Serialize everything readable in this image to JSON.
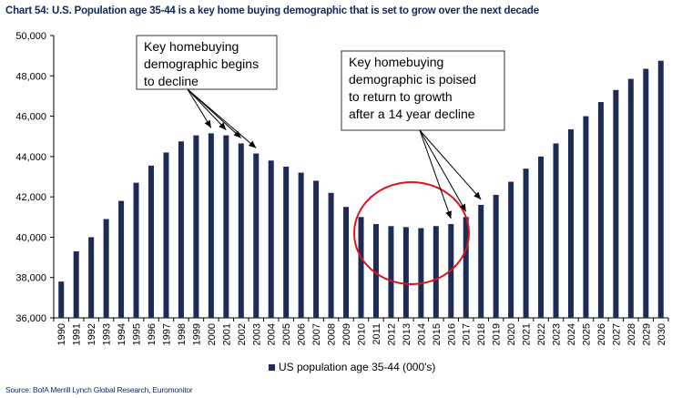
{
  "chart_data": {
    "type": "bar",
    "title": "Chart 54: U.S. Population age 35-44 is a key home buying demographic that is set to grow over the next decade",
    "source": "Source: BofA Merrill Lynch Global Research, Euromonitor",
    "legend": {
      "label": "US population age 35-44 (000's)",
      "position": "bottom"
    },
    "color": "#1c2c56",
    "ylim": [
      36000,
      50000
    ],
    "yticks": [
      36000,
      38000,
      40000,
      42000,
      44000,
      46000,
      48000,
      50000
    ],
    "ytick_labels": [
      "36,000",
      "38,000",
      "40,000",
      "42,000",
      "44,000",
      "46,000",
      "48,000",
      "50,000"
    ],
    "grid": false,
    "categories": [
      "1990",
      "1991",
      "1992",
      "1993",
      "1994",
      "1995",
      "1996",
      "1997",
      "1998",
      "1999",
      "2000",
      "2001",
      "2002",
      "2003",
      "2004",
      "2005",
      "2006",
      "2007",
      "2008",
      "2009",
      "2010",
      "2011",
      "2012",
      "2013",
      "2014",
      "2015",
      "2016",
      "2017",
      "2018",
      "2019",
      "2020",
      "2021",
      "2022",
      "2023",
      "2024",
      "2025",
      "2026",
      "2027",
      "2028",
      "2029",
      "2030"
    ],
    "series": [
      {
        "name": "US population age 35-44 (000's)",
        "values": [
          37800,
          39300,
          40000,
          40900,
          41800,
          42700,
          43550,
          44200,
          44750,
          45050,
          45150,
          45050,
          44650,
          44150,
          43800,
          43500,
          43200,
          42800,
          42200,
          41500,
          41000,
          40650,
          40550,
          40500,
          40450,
          40550,
          40650,
          41000,
          41600,
          42100,
          42750,
          43400,
          44000,
          44650,
          45350,
          46000,
          46700,
          47300,
          47850,
          48350,
          48750
        ]
      }
    ],
    "annotations": [
      {
        "lines": [
          "Key homebuying",
          "demographic begins",
          "to decline"
        ],
        "points_to": [
          "2000",
          "2001",
          "2002",
          "2003"
        ]
      },
      {
        "lines": [
          "Key homebuying",
          "demographic is poised",
          "to return to growth",
          "after a 14 year decline"
        ],
        "points_to": [
          "2016",
          "2017",
          "2018"
        ]
      }
    ]
  }
}
